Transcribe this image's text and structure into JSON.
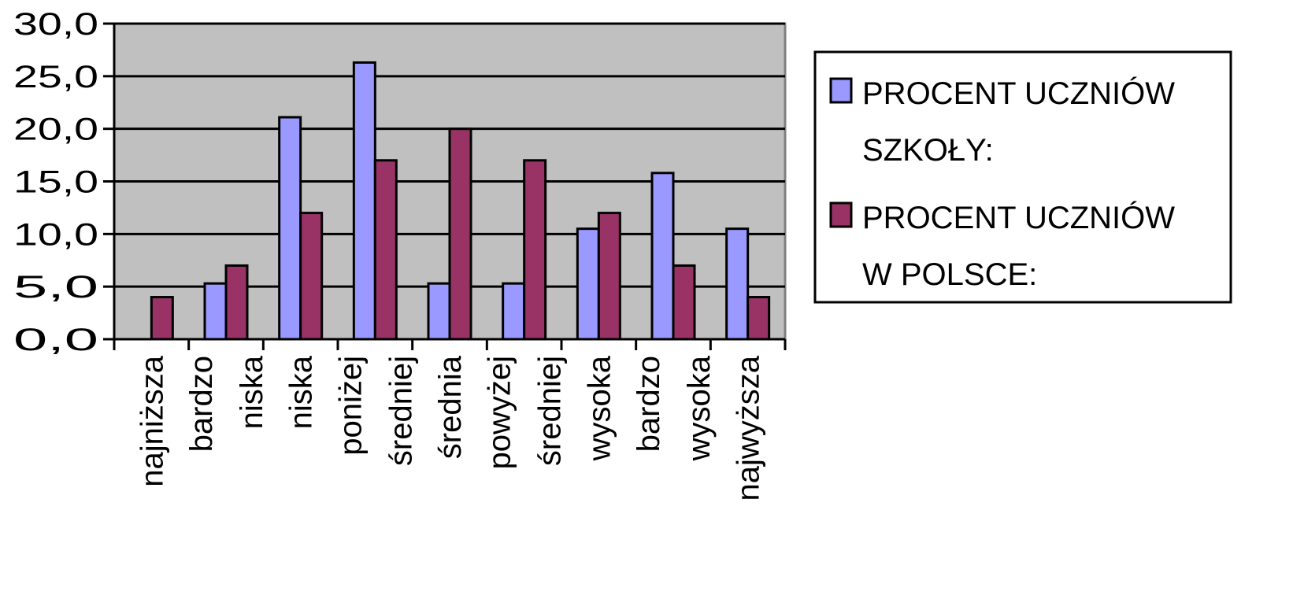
{
  "chart_data": {
    "type": "bar",
    "categories": [
      [
        "najniższa"
      ],
      [
        "bardzo",
        "niska"
      ],
      [
        "niska"
      ],
      [
        "poniżej",
        "średniej"
      ],
      [
        "średnia"
      ],
      [
        "powyżej",
        "średniej"
      ],
      [
        "wysoka"
      ],
      [
        "bardzo",
        "wysoka"
      ],
      [
        "najwyższa"
      ]
    ],
    "series": [
      {
        "name_lines": [
          "PROCENT UCZNIÓW",
          "SZKOŁY:"
        ],
        "color": "#9999ff",
        "values": [
          0.0,
          5.3,
          21.1,
          26.3,
          5.3,
          5.3,
          10.5,
          15.8,
          10.5
        ]
      },
      {
        "name_lines": [
          "PROCENT UCZNIÓW",
          "W POLSCE:"
        ],
        "color": "#993366",
        "values": [
          4.0,
          7.0,
          12.0,
          17.0,
          20.0,
          17.0,
          12.0,
          7.0,
          4.0
        ]
      }
    ],
    "y_ticks": [
      "0,0",
      "5,0",
      "10,0",
      "15,0",
      "20,0",
      "25,0",
      "30,0"
    ],
    "ylim": [
      0,
      30
    ],
    "plot_background": "#c0c0c0",
    "grid": true,
    "legend_position": "right"
  }
}
